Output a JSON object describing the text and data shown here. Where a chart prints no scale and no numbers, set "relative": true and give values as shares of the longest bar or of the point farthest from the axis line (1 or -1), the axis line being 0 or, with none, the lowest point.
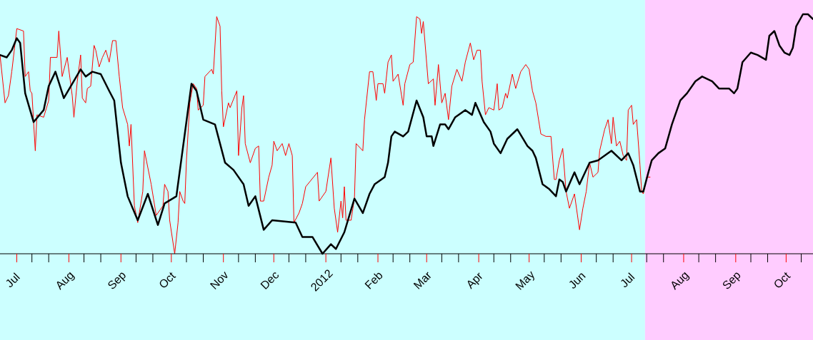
{
  "chart_data": {
    "type": "line",
    "relative": true,
    "xlim": [
      "2011-06-21",
      "2012-10-17"
    ],
    "xticks": [
      {
        "value": "2011-07-01",
        "label": "Jul"
      },
      {
        "value": "2011-07-10",
        "label": null
      },
      {
        "value": "2011-07-20",
        "label": null
      },
      {
        "value": "2011-08-01",
        "label": "Aug"
      },
      {
        "value": "2011-08-10",
        "label": null
      },
      {
        "value": "2011-08-20",
        "label": null
      },
      {
        "value": "2011-09-01",
        "label": "Sep"
      },
      {
        "value": "2011-09-10",
        "label": null
      },
      {
        "value": "2011-09-20",
        "label": null
      },
      {
        "value": "2011-10-01",
        "label": "Oct"
      },
      {
        "value": "2011-10-10",
        "label": null
      },
      {
        "value": "2011-10-20",
        "label": null
      },
      {
        "value": "2011-11-01",
        "label": "Nov"
      },
      {
        "value": "2011-11-10",
        "label": null
      },
      {
        "value": "2011-11-20",
        "label": null
      },
      {
        "value": "2011-12-01",
        "label": "Dec"
      },
      {
        "value": "2011-12-10",
        "label": null
      },
      {
        "value": "2011-12-20",
        "label": null
      },
      {
        "value": "2012-01-01",
        "label": "2012"
      },
      {
        "value": "2012-01-10",
        "label": null
      },
      {
        "value": "2012-01-20",
        "label": null
      },
      {
        "value": "2012-02-01",
        "label": "Feb"
      },
      {
        "value": "2012-02-10",
        "label": null
      },
      {
        "value": "2012-02-20",
        "label": null
      },
      {
        "value": "2012-03-01",
        "label": "Mar"
      },
      {
        "value": "2012-03-10",
        "label": null
      },
      {
        "value": "2012-03-20",
        "label": null
      },
      {
        "value": "2012-04-01",
        "label": "Apr"
      },
      {
        "value": "2012-04-10",
        "label": null
      },
      {
        "value": "2012-04-20",
        "label": null
      },
      {
        "value": "2012-05-01",
        "label": "May"
      },
      {
        "value": "2012-05-10",
        "label": null
      },
      {
        "value": "2012-05-20",
        "label": null
      },
      {
        "value": "2012-06-01",
        "label": "Jun"
      },
      {
        "value": "2012-06-10",
        "label": null
      },
      {
        "value": "2012-06-20",
        "label": null
      },
      {
        "value": "2012-07-01",
        "label": "Jul"
      },
      {
        "value": "2012-07-10",
        "label": null
      },
      {
        "value": "2012-07-20",
        "label": null
      },
      {
        "value": "2012-08-01",
        "label": "Aug"
      },
      {
        "value": "2012-08-10",
        "label": null
      },
      {
        "value": "2012-08-20",
        "label": null
      },
      {
        "value": "2012-09-01",
        "label": "Sep"
      },
      {
        "value": "2012-09-10",
        "label": null
      },
      {
        "value": "2012-09-20",
        "label": null
      },
      {
        "value": "2012-10-01",
        "label": "Oct"
      },
      {
        "value": "2012-10-10",
        "label": null
      }
    ],
    "bands": [
      {
        "axis": "x",
        "from": "2011-06-21",
        "to": "2012-07-09",
        "color": "#ccffff"
      },
      {
        "axis": "x",
        "from": "2012-07-09",
        "to": "2012-10-17",
        "color": "#ffccff"
      }
    ],
    "series": [
      {
        "color": "#ff0000",
        "x": [
          "2011-06-21",
          "2011-06-24",
          "2011-06-26",
          "2011-06-28",
          "2011-07-01",
          "2011-07-05",
          "2011-07-06",
          "2011-07-08",
          "2011-07-09",
          "2011-07-10",
          "2011-07-12",
          "2011-07-13",
          "2011-07-17",
          "2011-07-20",
          "2011-07-21",
          "2011-07-25",
          "2011-07-26",
          "2011-07-28",
          "2011-07-31",
          "2011-08-03",
          "2011-08-04",
          "2011-08-06",
          "2011-08-08",
          "2011-08-09",
          "2011-08-11",
          "2011-08-12",
          "2011-08-14",
          "2011-08-16",
          "2011-08-17",
          "2011-08-19",
          "2011-08-21",
          "2011-08-23",
          "2011-08-25",
          "2011-08-27",
          "2011-08-29",
          "2011-08-31",
          "2011-09-02",
          "2011-09-05",
          "2011-09-06",
          "2011-09-07",
          "2011-09-09",
          "2011-09-11",
          "2011-09-14",
          "2011-09-15",
          "2011-09-17",
          "2011-09-19",
          "2011-09-22",
          "2011-09-26",
          "2011-09-27",
          "2011-09-29",
          "2011-09-30",
          "2011-10-03",
          "2011-10-05",
          "2011-10-06",
          "2011-10-08",
          "2011-10-09",
          "2011-10-10",
          "2011-10-12",
          "2011-10-14",
          "2011-10-16",
          "2011-10-17",
          "2011-10-20",
          "2011-10-21",
          "2011-10-25",
          "2011-10-26",
          "2011-10-28",
          "2011-10-30",
          "2011-10-31",
          "2011-11-01",
          "2011-11-04",
          "2011-11-05",
          "2011-11-09",
          "2011-11-10",
          "2011-11-12",
          "2011-11-13",
          "2011-11-14",
          "2011-11-17",
          "2011-11-20",
          "2011-11-22",
          "2011-11-23",
          "2011-11-25",
          "2011-11-28",
          "2011-11-30",
          "2011-12-01",
          "2011-12-03",
          "2011-12-06",
          "2011-12-08",
          "2011-12-10",
          "2011-12-12",
          "2011-12-13",
          "2011-12-16",
          "2011-12-18",
          "2011-12-20",
          "2011-12-27",
          "2011-12-28",
          "2012-01-01",
          "2012-01-04",
          "2012-01-06",
          "2012-01-08",
          "2012-01-10",
          "2012-01-11",
          "2012-01-12",
          "2012-01-13",
          "2012-01-16",
          "2012-01-18",
          "2012-01-19",
          "2012-01-23",
          "2012-01-24",
          "2012-01-27",
          "2012-01-29",
          "2012-01-31",
          "2012-02-01",
          "2012-02-04",
          "2012-02-05",
          "2012-02-07",
          "2012-02-09",
          "2012-02-10",
          "2012-02-13",
          "2012-02-16",
          "2012-02-17",
          "2012-02-20",
          "2012-02-22",
          "2012-02-24",
          "2012-02-26",
          "2012-02-27",
          "2012-02-28",
          "2012-03-02",
          "2012-03-05",
          "2012-03-06",
          "2012-03-08",
          "2012-03-10",
          "2012-03-12",
          "2012-03-14",
          "2012-03-16",
          "2012-03-19",
          "2012-03-22",
          "2012-03-24",
          "2012-03-27",
          "2012-03-29",
          "2012-03-31",
          "2012-04-02",
          "2012-04-03",
          "2012-04-05",
          "2012-04-07",
          "2012-04-10",
          "2012-04-12",
          "2012-04-13",
          "2012-04-15",
          "2012-04-17",
          "2012-04-18",
          "2012-04-21",
          "2012-04-23",
          "2012-04-26",
          "2012-04-29",
          "2012-05-01",
          "2012-05-03",
          "2012-05-05",
          "2012-05-08",
          "2012-05-11",
          "2012-05-14",
          "2012-05-16",
          "2012-05-17",
          "2012-05-19",
          "2012-05-21",
          "2012-05-23",
          "2012-05-25",
          "2012-05-28",
          "2012-05-31",
          "2012-06-02",
          "2012-06-04",
          "2012-06-06",
          "2012-06-08",
          "2012-06-11",
          "2012-06-12",
          "2012-06-15",
          "2012-06-17",
          "2012-06-19",
          "2012-06-20",
          "2012-06-22",
          "2012-06-24",
          "2012-06-26",
          "2012-06-28",
          "2012-06-29",
          "2012-07-01",
          "2012-07-02",
          "2012-07-04",
          "2012-07-06",
          "2012-07-07",
          "2012-07-08",
          "2012-07-10",
          "2012-07-12"
        ],
        "values": [
          0.83,
          0.63,
          0.66,
          0.76,
          0.94,
          0.93,
          0.74,
          0.76,
          0.68,
          0.67,
          0.43,
          0.58,
          0.57,
          0.64,
          0.82,
          0.82,
          0.93,
          0.74,
          0.82,
          0.66,
          0.57,
          0.72,
          0.83,
          0.65,
          0.63,
          0.69,
          0.7,
          0.87,
          0.85,
          0.78,
          0.82,
          0.85,
          0.8,
          0.89,
          0.89,
          0.74,
          0.61,
          0.54,
          0.45,
          0.54,
          0.2,
          0.13,
          0.26,
          0.43,
          0.36,
          0.29,
          0.16,
          0.2,
          0.29,
          0.26,
          0.14,
          0.0,
          0.13,
          0.26,
          0.22,
          0.21,
          0.39,
          0.63,
          0.71,
          0.69,
          0.6,
          0.62,
          0.74,
          0.77,
          0.75,
          0.99,
          0.95,
          0.68,
          0.53,
          0.63,
          0.61,
          0.68,
          0.41,
          0.61,
          0.66,
          0.46,
          0.38,
          0.44,
          0.45,
          0.22,
          0.22,
          0.32,
          0.37,
          0.47,
          0.43,
          0.46,
          0.41,
          0.46,
          0.41,
          0.13,
          0.17,
          0.21,
          0.28,
          0.34,
          0.22,
          0.26,
          0.4,
          0.19,
          0.09,
          0.22,
          0.15,
          0.28,
          0.14,
          0.14,
          0.23,
          0.46,
          0.43,
          0.56,
          0.76,
          0.76,
          0.64,
          0.71,
          0.71,
          0.67,
          0.8,
          0.83,
          0.72,
          0.75,
          0.62,
          0.71,
          0.79,
          0.8,
          0.99,
          0.98,
          0.92,
          0.97,
          0.71,
          0.73,
          0.62,
          0.79,
          0.63,
          0.67,
          0.56,
          0.7,
          0.77,
          0.72,
          0.8,
          0.88,
          0.81,
          0.85,
          0.85,
          0.72,
          0.58,
          0.61,
          0.6,
          0.71,
          0.6,
          0.61,
          0.67,
          0.65,
          0.75,
          0.69,
          0.76,
          0.79,
          0.77,
          0.68,
          0.63,
          0.5,
          0.49,
          0.49,
          0.31,
          0.31,
          0.39,
          0.44,
          0.26,
          0.19,
          0.25,
          0.1,
          0.19,
          0.26,
          0.38,
          0.32,
          0.34,
          0.43,
          0.52,
          0.56,
          0.46,
          0.57,
          0.45,
          0.47,
          0.41,
          0.39,
          0.6,
          0.62,
          0.54,
          0.56,
          0.37,
          0.26,
          0.25,
          0.32,
          0.32
        ]
      },
      {
        "color": "#000000",
        "x": [
          "2011-06-21",
          "2011-06-25",
          "2011-06-28",
          "2011-07-01",
          "2011-07-03",
          "2011-07-06",
          "2011-07-11",
          "2011-07-17",
          "2011-07-20",
          "2011-07-24",
          "2011-07-29",
          "2011-08-08",
          "2011-08-11",
          "2011-08-15",
          "2011-08-20",
          "2011-08-25",
          "2011-08-28",
          "2011-09-01",
          "2011-09-05",
          "2011-09-11",
          "2011-09-17",
          "2011-09-23",
          "2011-09-27",
          "2011-10-04",
          "2011-10-09",
          "2011-10-13",
          "2011-10-16",
          "2011-10-20",
          "2011-10-27",
          "2011-11-02",
          "2011-11-07",
          "2011-11-13",
          "2011-11-16",
          "2011-11-20",
          "2011-11-25",
          "2011-11-30",
          "2011-12-14",
          "2011-12-18",
          "2011-12-24",
          "2011-12-30",
          "2012-01-04",
          "2012-01-07",
          "2012-01-12",
          "2012-01-18",
          "2012-01-23",
          "2012-01-27",
          "2012-01-30",
          "2012-02-05",
          "2012-02-07",
          "2012-02-09",
          "2012-02-11",
          "2012-02-16",
          "2012-02-19",
          "2012-02-24",
          "2012-02-28",
          "2012-03-01",
          "2012-03-04",
          "2012-03-05",
          "2012-03-09",
          "2012-03-12",
          "2012-03-14",
          "2012-03-18",
          "2012-03-24",
          "2012-03-28",
          "2012-03-30",
          "2012-04-04",
          "2012-04-08",
          "2012-04-10",
          "2012-04-14",
          "2012-04-18",
          "2012-04-24",
          "2012-04-30",
          "2012-05-03",
          "2012-05-05",
          "2012-05-09",
          "2012-05-13",
          "2012-05-17",
          "2012-05-19",
          "2012-05-21",
          "2012-05-23",
          "2012-05-28",
          "2012-05-31",
          "2012-06-06",
          "2012-06-11",
          "2012-06-19",
          "2012-06-25",
          "2012-06-29",
          "2012-07-02",
          "2012-07-06",
          "2012-07-08",
          "2012-07-11",
          "2012-07-13",
          "2012-07-17",
          "2012-07-21",
          "2012-07-25",
          "2012-07-30",
          "2012-08-03",
          "2012-08-08",
          "2012-08-12",
          "2012-08-18",
          "2012-08-22",
          "2012-08-25",
          "2012-08-28",
          "2012-08-31",
          "2012-09-02",
          "2012-09-05",
          "2012-09-10",
          "2012-09-14",
          "2012-09-19",
          "2012-09-21",
          "2012-09-24",
          "2012-09-27",
          "2012-09-30",
          "2012-10-03",
          "2012-10-05",
          "2012-10-07",
          "2012-10-11",
          "2012-10-14",
          "2012-10-17"
        ],
        "values": [
          0.83,
          0.82,
          0.85,
          0.9,
          0.88,
          0.67,
          0.55,
          0.6,
          0.7,
          0.76,
          0.65,
          0.77,
          0.74,
          0.76,
          0.75,
          0.68,
          0.64,
          0.38,
          0.24,
          0.14,
          0.25,
          0.12,
          0.21,
          0.24,
          0.5,
          0.71,
          0.68,
          0.56,
          0.54,
          0.38,
          0.35,
          0.29,
          0.2,
          0.24,
          0.1,
          0.14,
          0.13,
          0.07,
          0.07,
          0.0,
          0.04,
          0.02,
          0.09,
          0.23,
          0.17,
          0.25,
          0.29,
          0.32,
          0.38,
          0.49,
          0.51,
          0.49,
          0.51,
          0.64,
          0.57,
          0.49,
          0.49,
          0.45,
          0.54,
          0.54,
          0.52,
          0.57,
          0.6,
          0.58,
          0.63,
          0.55,
          0.51,
          0.46,
          0.42,
          0.48,
          0.52,
          0.45,
          0.43,
          0.4,
          0.29,
          0.27,
          0.24,
          0.31,
          0.3,
          0.26,
          0.34,
          0.29,
          0.38,
          0.39,
          0.43,
          0.39,
          0.42,
          0.37,
          0.26,
          0.26,
          0.34,
          0.39,
          0.42,
          0.44,
          0.54,
          0.64,
          0.67,
          0.72,
          0.74,
          0.72,
          0.69,
          0.69,
          0.69,
          0.67,
          0.69,
          0.8,
          0.84,
          0.83,
          0.81,
          0.91,
          0.93,
          0.87,
          0.84,
          0.83,
          0.86,
          0.95,
          1.0,
          1.0,
          0.98
        ]
      }
    ]
  }
}
